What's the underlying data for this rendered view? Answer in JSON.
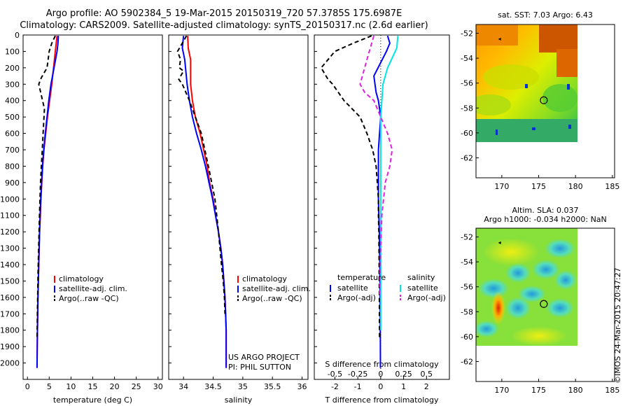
{
  "header": {
    "line1": "Argo profile: AO 5902384_5 19-Mar-2015 20150319_720 57.3785S 175.6987E",
    "line2": "Climatology: CARS2009. Satellite-adjusted climatology: synTS_20150317.nc (2.6d earlier)"
  },
  "credits": {
    "project": "US ARGO PROJECT",
    "pi": "PI: PHIL SUTTON",
    "stamp": "©IMOS 24-Mar-2015 20:47:27"
  },
  "colors": {
    "climatology": "#ff0000",
    "satellite": "#0000ff",
    "argo": "#000000",
    "sal_satellite": "#00e5e5",
    "sal_argo": "#e020e0"
  },
  "chart_data": [
    {
      "type": "line",
      "id": "temperature",
      "xlabel": "temperature (deg C)",
      "ylabel": "",
      "xlim": [
        -1,
        31
      ],
      "ylim": [
        2100,
        0
      ],
      "xticks": [
        0,
        5,
        10,
        15,
        20,
        25,
        30
      ],
      "yticks": [
        0,
        100,
        200,
        300,
        400,
        500,
        600,
        700,
        800,
        900,
        1000,
        1100,
        1200,
        1300,
        1400,
        1500,
        1600,
        1700,
        1800,
        1900,
        2000
      ],
      "legend": [
        "climatology",
        "satellite-adj. clim.",
        "Argo(..raw -QC)"
      ],
      "series": [
        {
          "name": "climatology",
          "style": "solid",
          "color": "#ff0000",
          "x": [
            6.8,
            6.6,
            6.4,
            6.0,
            5.6,
            5.1,
            4.6,
            4.2,
            3.8,
            3.5,
            3.3,
            3.1,
            2.95,
            2.8,
            2.7,
            2.6,
            2.5,
            2.4,
            2.35,
            2.3,
            2.25,
            2.2
          ],
          "y": [
            5,
            50,
            100,
            200,
            300,
            400,
            500,
            600,
            700,
            800,
            900,
            1000,
            1100,
            1200,
            1300,
            1400,
            1500,
            1600,
            1700,
            1800,
            1900,
            2030
          ]
        },
        {
          "name": "satellite-adj. clim.",
          "style": "solid",
          "color": "#0000ff",
          "x": [
            7.1,
            7.0,
            6.8,
            6.1,
            5.4,
            4.9,
            4.5,
            4.1,
            3.75,
            3.45,
            3.25,
            3.05,
            2.9,
            2.78,
            2.68,
            2.58,
            2.5,
            2.42,
            2.36,
            2.3,
            2.25,
            2.2
          ],
          "y": [
            5,
            50,
            100,
            200,
            300,
            400,
            500,
            600,
            700,
            800,
            900,
            1000,
            1100,
            1200,
            1300,
            1400,
            1500,
            1600,
            1700,
            1800,
            1900,
            2030
          ]
        },
        {
          "name": "Argo(..raw -QC)",
          "style": "dashed",
          "color": "#000000",
          "x": [
            6.4,
            5.6,
            5.0,
            4.5,
            3.2,
            2.6,
            3.3,
            3.9,
            3.6,
            3.4,
            3.2,
            3.0,
            2.88,
            2.76,
            2.66,
            2.57,
            2.48,
            2.4,
            2.34,
            2.28,
            2.23,
            2.2
          ],
          "y": [
            5,
            50,
            100,
            200,
            260,
            300,
            380,
            450,
            600,
            700,
            800,
            900,
            1000,
            1100,
            1200,
            1300,
            1400,
            1500,
            1600,
            1700,
            1800,
            1850
          ]
        }
      ]
    },
    {
      "type": "line",
      "id": "salinity",
      "xlabel": "salinity",
      "ylabel": "",
      "xlim": [
        33.75,
        36.1
      ],
      "ylim": [
        2100,
        0
      ],
      "xticks": [
        34,
        34.5,
        35,
        35.5,
        36
      ],
      "legend": [
        "climatology",
        "satellite-adj. clim.",
        "Argo(..raw -QC)"
      ],
      "series": [
        {
          "name": "climatology",
          "style": "solid",
          "color": "#ff0000",
          "x": [
            34.07,
            34.08,
            34.12,
            34.12,
            34.15,
            34.2,
            34.28,
            34.34,
            34.4,
            34.44,
            34.5,
            34.54,
            34.59,
            34.63,
            34.66,
            34.68,
            34.7,
            34.71,
            34.72,
            34.72
          ],
          "y": [
            5,
            80,
            150,
            300,
            400,
            500,
            600,
            700,
            800,
            900,
            1000,
            1100,
            1200,
            1300,
            1400,
            1500,
            1600,
            1700,
            1800,
            2030
          ]
        },
        {
          "name": "satellite-adj. clim.",
          "style": "solid",
          "color": "#0000ff",
          "x": [
            34.0,
            33.98,
            34.02,
            34.06,
            34.1,
            34.15,
            34.22,
            34.3,
            34.37,
            34.43,
            34.49,
            34.54,
            34.59,
            34.63,
            34.66,
            34.68,
            34.7,
            34.71,
            34.72,
            34.72
          ],
          "y": [
            5,
            80,
            150,
            300,
            400,
            500,
            600,
            700,
            800,
            900,
            1000,
            1100,
            1200,
            1300,
            1400,
            1500,
            1600,
            1700,
            1800,
            2030
          ]
        },
        {
          "name": "Argo(..raw -QC)",
          "style": "dashed",
          "color": "#000000",
          "x": [
            34.05,
            33.9,
            33.95,
            33.93,
            34.0,
            33.92,
            33.98,
            34.1,
            34.2,
            34.3,
            34.42,
            34.53,
            34.59,
            34.64,
            34.67,
            34.69,
            34.7
          ],
          "y": [
            5,
            100,
            150,
            200,
            220,
            270,
            300,
            400,
            500,
            600,
            800,
            1000,
            1200,
            1400,
            1500,
            1600,
            1700
          ]
        }
      ]
    },
    {
      "type": "line",
      "id": "difference",
      "xlabel_top": "S difference from climatology",
      "xlabel": "T difference from climatology",
      "xlim": [
        -2.9,
        3.0
      ],
      "ylim": [
        2100,
        0
      ],
      "xticks": [
        -2,
        -1,
        0,
        1,
        2
      ],
      "xticks_top": [
        -0.5,
        -0.25,
        0,
        0.25,
        0.5
      ],
      "legend_groups": [
        {
          "title": "temperature",
          "items": [
            "satellite",
            "Argo(-adj)"
          ]
        },
        {
          "title": "salinity",
          "items": [
            "satellite",
            "Argo(-adj)"
          ]
        }
      ],
      "series": [
        {
          "name": "temperature satellite",
          "style": "solid",
          "color": "#0000ff",
          "x": [
            0.3,
            0.4,
            0.25,
            -0.3,
            -0.25,
            -0.2,
            -0.1,
            0.0,
            -0.05,
            -0.1,
            -0.1,
            -0.1,
            -0.1,
            -0.08,
            -0.06,
            -0.05,
            -0.04,
            -0.03,
            -0.02,
            -0.01
          ],
          "y": [
            5,
            50,
            100,
            250,
            300,
            350,
            400,
            500,
            600,
            700,
            800,
            900,
            1000,
            1100,
            1200,
            1300,
            1400,
            1500,
            1700,
            2030
          ]
        },
        {
          "name": "temperature Argo(-adj)",
          "style": "dashed",
          "color": "#000000",
          "x": [
            -0.4,
            -1.2,
            -2.0,
            -2.6,
            -2.3,
            -2.1,
            -1.6,
            -0.9,
            -0.6,
            -0.35,
            -0.2,
            -0.15,
            -0.1,
            -0.1,
            -0.08,
            -0.07,
            -0.06,
            -0.05
          ],
          "y": [
            5,
            50,
            100,
            200,
            270,
            300,
            400,
            500,
            600,
            700,
            800,
            900,
            1000,
            1100,
            1200,
            1400,
            1600,
            1850
          ]
        },
        {
          "name": "salinity satellite",
          "style": "solid",
          "color": "#00e5e5",
          "x": [
            0.75,
            0.7,
            0.3,
            0.1,
            0.05,
            0.0,
            0.0,
            0.0,
            0.0,
            0.0,
            0.0,
            0.0,
            0.0
          ],
          "y": [
            5,
            80,
            200,
            300,
            400,
            500,
            700,
            900,
            1100,
            1300,
            1500,
            1700,
            1800
          ]
        },
        {
          "name": "salinity Argo(-adj)",
          "style": "dashed",
          "color": "#e020e0",
          "x": [
            -0.3,
            -0.6,
            -0.9,
            -0.7,
            -0.3,
            0.0,
            0.3,
            0.5,
            0.4,
            0.2,
            0.05,
            0.0,
            -0.05
          ],
          "y": [
            5,
            150,
            300,
            350,
            400,
            500,
            600,
            700,
            800,
            900,
            1100,
            1300,
            1600
          ]
        }
      ]
    },
    {
      "type": "heatmap",
      "id": "sst_map",
      "title": "sat. SST: 7.03 Argo: 6.43",
      "xlim": [
        166.5,
        185.3
      ],
      "ylim": [
        -63.6,
        -51.3
      ],
      "xticks": [
        170,
        175,
        180,
        185
      ],
      "yticks": [
        -52,
        -54,
        -56,
        -58,
        -60,
        -62
      ],
      "marker": {
        "lon": 175.6987,
        "lat": -57.3785
      }
    },
    {
      "type": "heatmap",
      "id": "sla_map",
      "title": "Altim. SLA: 0.037",
      "subtitle": "Argo h1000: -0.034 h2000: NaN",
      "xlim": [
        166.5,
        185.3
      ],
      "ylim": [
        -63.6,
        -51.3
      ],
      "xticks": [
        170,
        175,
        180,
        185
      ],
      "yticks": [
        -52,
        -54,
        -56,
        -58,
        -60,
        -62
      ],
      "marker": {
        "lon": 175.6987,
        "lat": -57.3785
      }
    }
  ]
}
